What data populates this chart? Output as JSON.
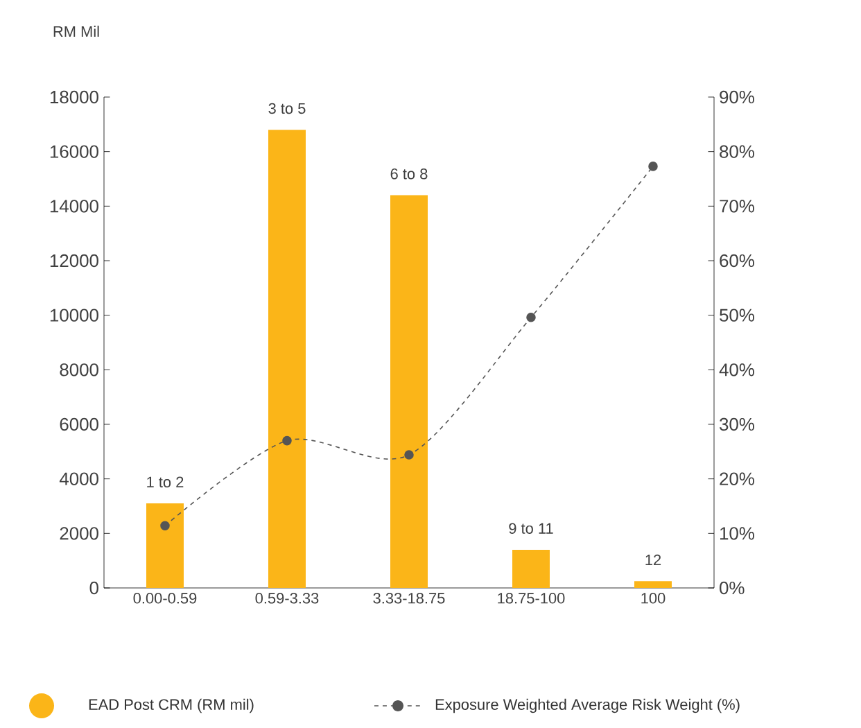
{
  "chart_data": {
    "type": "bar",
    "ylabel": "RM Mil",
    "categories": [
      "0.00-0.59",
      "0.59-3.33",
      "3.33-18.75",
      "18.75-100",
      "100"
    ],
    "series": [
      {
        "name": "EAD Post CRM (RM mil)",
        "color": "#fbb518",
        "values": [
          3100,
          16800,
          14400,
          1400,
          250
        ]
      },
      {
        "name": "Exposure Weighted Average Risk Weight (%)",
        "type": "line",
        "axis": "y2",
        "color": "#555555",
        "marker": "circle",
        "line_style": "dashed",
        "values": [
          11.4,
          27.0,
          24.4,
          49.6,
          77.3
        ]
      }
    ],
    "ylim": [
      0,
      18000
    ],
    "yticks": [
      0,
      2000,
      4000,
      6000,
      8000,
      10000,
      12000,
      14000,
      16000,
      18000
    ],
    "y2lim": [
      0,
      90
    ],
    "y2ticks": [
      {
        "value": 0,
        "label": "0%"
      },
      {
        "value": 10,
        "label": "10%"
      },
      {
        "value": 20,
        "label": "20%"
      },
      {
        "value": 30,
        "label": "30%"
      },
      {
        "value": 40,
        "label": "40%"
      },
      {
        "value": 50,
        "label": "50%"
      },
      {
        "value": 60,
        "label": "60%"
      },
      {
        "value": 70,
        "label": "70%"
      },
      {
        "value": 80,
        "label": "80%"
      },
      {
        "value": 90,
        "label": "90%"
      }
    ],
    "annotations": [
      {
        "text": "1 to 2",
        "x": "0.00-0.59",
        "y": 3100
      },
      {
        "text": "3 to 5",
        "x": "0.59-3.33",
        "y": 16800
      },
      {
        "text": "6 to 8",
        "x": "3.33-18.75",
        "y": 14400
      },
      {
        "text": "9 to 11",
        "x": "18.75-100",
        "y": 1400
      },
      {
        "text": "12",
        "x": "100",
        "y": 250
      }
    ],
    "legend": "bottom",
    "grid": false
  }
}
